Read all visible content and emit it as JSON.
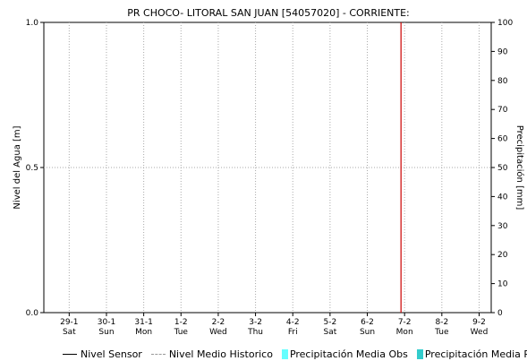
{
  "chart_data": {
    "type": "line",
    "title": "PR CHOCO- LITORAL SAN JUAN [54057020] - CORRIENTE:",
    "ylabel": "Nivel del Agua [m]",
    "y2label": "Precipitación [mm]",
    "ylim": [
      0.0,
      1.0
    ],
    "y2lim": [
      0,
      100
    ],
    "y_ticks": [
      "0.0",
      "0.5",
      "1.0"
    ],
    "y2_ticks": [
      "0",
      "10",
      "20",
      "30",
      "40",
      "50",
      "60",
      "70",
      "80",
      "90",
      "100"
    ],
    "x_ticks": [
      {
        "date": "29-1",
        "day": "Sat"
      },
      {
        "date": "30-1",
        "day": "Sun"
      },
      {
        "date": "31-1",
        "day": "Mon"
      },
      {
        "date": "1-2",
        "day": "Tue"
      },
      {
        "date": "2-2",
        "day": "Wed"
      },
      {
        "date": "3-2",
        "day": "Thu"
      },
      {
        "date": "4-2",
        "day": "Fri"
      },
      {
        "date": "5-2",
        "day": "Sat"
      },
      {
        "date": "6-2",
        "day": "Sun"
      },
      {
        "date": "7-2",
        "day": "Mon"
      },
      {
        "date": "8-2",
        "day": "Tue"
      },
      {
        "date": "9-2",
        "day": "Wed"
      }
    ],
    "marker_date": "7-2",
    "grid": true,
    "legend_position": "bottom",
    "series": [
      {
        "name": "Nivel Sensor",
        "values": []
      },
      {
        "name": "Nivel Medio Historico",
        "values": []
      },
      {
        "name": "Precipitación Media Obs",
        "values": []
      },
      {
        "name": "Precipitación Media Pro",
        "values": []
      }
    ],
    "colors": {
      "grid": "#aaaaaa",
      "marker": "#cc0000",
      "nivel_sensor": "#000000",
      "nivel_medio": "#999999",
      "precip_obs": "#66ffff",
      "precip_pro": "#33cccc"
    }
  },
  "legend": {
    "items": [
      {
        "label": "Nivel Sensor",
        "swatch": "solid-line"
      },
      {
        "label": "Nivel Medio Historico",
        "swatch": "dashed-line"
      },
      {
        "label": "Precipitación Media Obs",
        "swatch": "box",
        "color": "#66ffff"
      },
      {
        "label": "Precipitación Media Pro",
        "swatch": "box",
        "color": "#33cccc"
      }
    ]
  }
}
